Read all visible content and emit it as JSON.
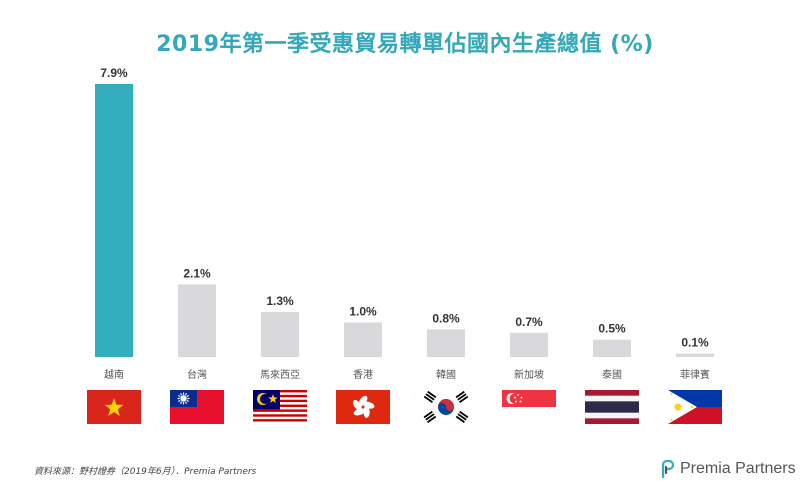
{
  "title": "2019年第一季受惠貿易轉單佔國內生產總值 (%)",
  "chart_data": {
    "type": "bar",
    "title": "2019年第一季受惠貿易轉單佔國內生產總值 (%)",
    "categories": [
      "越南",
      "台灣",
      "馬來西亞",
      "香港",
      "韓國",
      "新加坡",
      "泰國",
      "菲律賓"
    ],
    "values": [
      7.9,
      2.1,
      1.3,
      1.0,
      0.8,
      0.7,
      0.5,
      0.1
    ],
    "value_labels": [
      "7.9%",
      "2.1%",
      "1.3%",
      "1.0%",
      "0.8%",
      "0.7%",
      "0.5%",
      "0.1%"
    ],
    "ylim": [
      0,
      7.9
    ],
    "grid": false,
    "colors": {
      "highlight": "#33aebd",
      "other": "#d9d8da"
    },
    "flags": [
      "vietnam-flag-icon",
      "taiwan-flag-icon",
      "malaysia-flag-icon",
      "hong-kong-flag-icon",
      "south-korea-flag-icon",
      "singapore-flag-icon",
      "thailand-flag-icon",
      "philippines-flag-icon"
    ]
  },
  "source": "資料來源：野村證券（2019年6月）．Premia Partners",
  "logo": {
    "text": "Premia Partners"
  }
}
